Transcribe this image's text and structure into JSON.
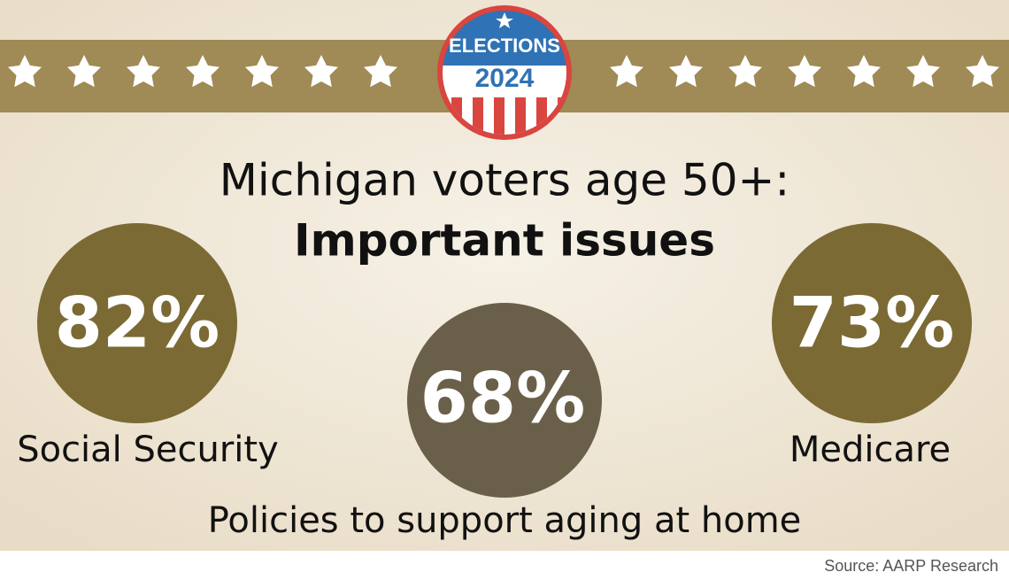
{
  "badge": {
    "line1": "ELECTIONS",
    "line2": "2024"
  },
  "title": {
    "line1": "Michigan voters age 50+:",
    "line2": "Important issues"
  },
  "stats": [
    {
      "value": "82%",
      "label": "Social Security"
    },
    {
      "value": "68%",
      "label": "Policies to support aging at home"
    },
    {
      "value": "73%",
      "label": "Medicare"
    }
  ],
  "source": "Source: AARP Research"
}
